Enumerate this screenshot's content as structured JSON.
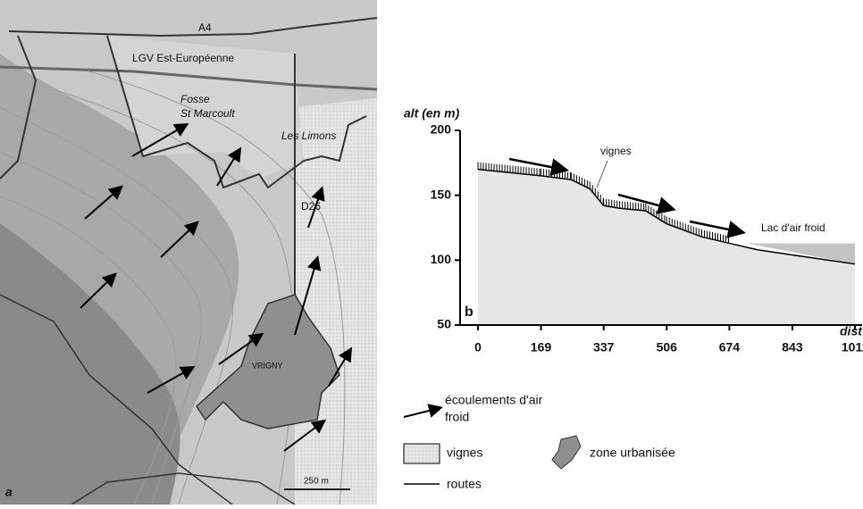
{
  "map": {
    "labels": {
      "a4": "A4",
      "lgv": "LGV Est-Européenne",
      "fosse_1": "Fosse",
      "fosse_2": "St Marcoult",
      "limons": "Les Limons",
      "d26": "D26",
      "vrigny": "VRIGNY",
      "scale": "250 m",
      "panel": "a"
    }
  },
  "chart_data": {
    "type": "area",
    "y_label": "alt (en m)",
    "x_label": "dist",
    "panel_label": "b",
    "annotations": {
      "vignes": "vignes",
      "lake": "Lac d'air froid"
    },
    "x": [
      0,
      169,
      250,
      300,
      337,
      380,
      450,
      506,
      600,
      674,
      750,
      843,
      1011
    ],
    "values": [
      170,
      165,
      162,
      155,
      142,
      140,
      138,
      128,
      118,
      113,
      108,
      104,
      97
    ],
    "lake": {
      "x": [
        720,
        1011
      ],
      "values": [
        113,
        113
      ]
    },
    "xlim": [
      -48,
      1030
    ],
    "ylim": [
      50,
      200
    ],
    "xticks": [
      0,
      169,
      337,
      506,
      674,
      843,
      1011
    ],
    "yticks": [
      50,
      100,
      150,
      200
    ]
  },
  "legend": {
    "flow_1": "écoulements d'air",
    "flow_2": "froid",
    "vignes": "vignes",
    "urban": "zone urbanisée",
    "roads": "routes"
  }
}
